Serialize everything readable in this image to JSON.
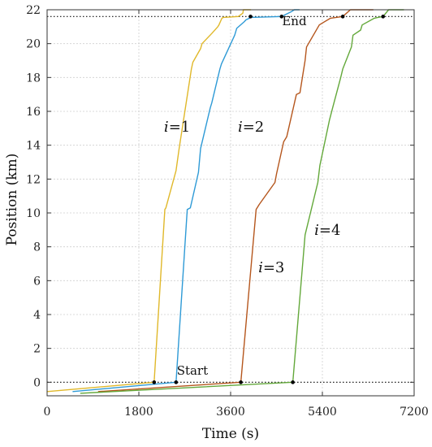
{
  "chart_data": {
    "type": "line",
    "title": "",
    "xlabel": "Time (s)",
    "ylabel": "Position (km)",
    "xlim": [
      0,
      7200
    ],
    "ylim": [
      -0.8,
      22
    ],
    "x_ticks": [
      0,
      1800,
      3600,
      5400,
      7200
    ],
    "y_ticks": [
      0,
      2,
      4,
      6,
      8,
      10,
      12,
      14,
      16,
      18,
      20,
      22
    ],
    "grid": true,
    "legend": "none",
    "reference_lines": [
      {
        "name": "start",
        "y": 0,
        "label": "Start",
        "label_x": 2850,
        "label_y": 0.45
      },
      {
        "name": "end",
        "y": 21.6,
        "label": "End",
        "label_x": 4850,
        "label_y": 21.1
      }
    ],
    "series": [
      {
        "label_prefix": "i",
        "label_value": "=1",
        "color": "#e0b82a",
        "label_x": 2550,
        "label_y": 14.8,
        "x": [
          0,
          2100,
          2310,
          2330,
          2530,
          2590,
          2830,
          2860,
          3010,
          3040,
          3230,
          3350,
          3370,
          3430,
          3460,
          3750,
          3840,
          3850,
          3900,
          4000
        ],
        "y": [
          -0.55,
          0,
          10.2,
          10.3,
          12.5,
          13.8,
          18.5,
          18.9,
          19.7,
          20.0,
          20.6,
          21.0,
          21.1,
          21.5,
          21.55,
          21.6,
          21.8,
          22,
          22,
          22
        ]
      },
      {
        "label_prefix": "i",
        "label_value": "=2",
        "color": "#2e9ad6",
        "label_x": 4000,
        "label_y": 14.8,
        "x": [
          500,
          2530,
          2750,
          2810,
          2970,
          3010,
          3200,
          3230,
          3390,
          3420,
          3680,
          3720,
          3870,
          3900,
          4000,
          4600,
          4800,
          4850,
          4950
        ],
        "y": [
          -0.55,
          0,
          10.2,
          10.3,
          12.4,
          13.8,
          16.2,
          16.5,
          18.5,
          18.8,
          20.5,
          20.9,
          21.3,
          21.4,
          21.55,
          21.6,
          21.9,
          22,
          22
        ]
      },
      {
        "label_prefix": "i",
        "label_value": "=3",
        "color": "#b5561d",
        "label_x": 4400,
        "label_y": 6.5,
        "x": [
          1000,
          3800,
          4100,
          4160,
          4470,
          4500,
          4640,
          4700,
          4890,
          4960,
          5060,
          5090,
          5340,
          5390,
          5560,
          5800,
          5950,
          6200,
          6400
        ],
        "y": [
          -0.55,
          0,
          10.2,
          10.5,
          11.8,
          12.3,
          14.2,
          14.5,
          17.0,
          17.1,
          19.0,
          19.8,
          21.1,
          21.2,
          21.5,
          21.6,
          22,
          22,
          22
        ]
      },
      {
        "label_prefix": "i",
        "label_value": "=4",
        "color": "#63a83a",
        "label_x": 5500,
        "label_y": 8.7,
        "x": [
          650,
          4820,
          5060,
          5310,
          5350,
          5540,
          5600,
          5760,
          5800,
          5970,
          6000,
          6150,
          6180,
          6420,
          6490,
          6590,
          6700,
          6850,
          7000
        ],
        "y": [
          -0.65,
          0,
          8.7,
          11.8,
          12.8,
          15.5,
          16.2,
          18.0,
          18.5,
          19.8,
          20.5,
          20.8,
          21.1,
          21.5,
          21.55,
          21.6,
          22,
          22,
          22
        ]
      }
    ],
    "markers": [
      {
        "x": 2100,
        "y": 0
      },
      {
        "x": 2530,
        "y": 0
      },
      {
        "x": 3800,
        "y": 0
      },
      {
        "x": 4820,
        "y": 0
      },
      {
        "x": 3990,
        "y": 21.6
      },
      {
        "x": 4600,
        "y": 21.6
      },
      {
        "x": 5800,
        "y": 21.6
      },
      {
        "x": 6590,
        "y": 21.6
      }
    ]
  }
}
